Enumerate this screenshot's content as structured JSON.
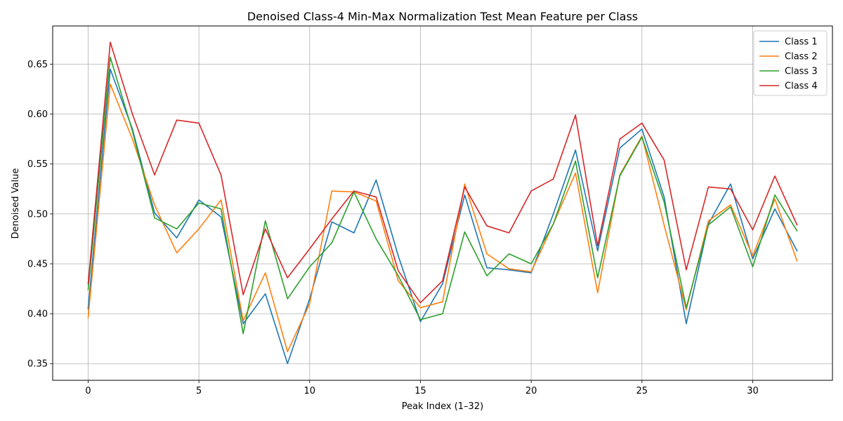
{
  "chart_data": {
    "type": "line",
    "title": "Denoised Class-4 Min-Max Normalization Test Mean Feature per Class",
    "xlabel": "Peak Index (1–32)",
    "ylabel": "Denoised Value",
    "xlim": [
      -1.6,
      33.6
    ],
    "ylim": [
      0.3333,
      0.6883
    ],
    "xticks": [
      0,
      5,
      10,
      15,
      20,
      25,
      30
    ],
    "yticks": [
      0.35,
      0.4,
      0.45,
      0.5,
      0.55,
      0.6,
      0.65
    ],
    "ytick_labels": [
      "0.35",
      "0.40",
      "0.45",
      "0.50",
      "0.55",
      "0.60",
      "0.65"
    ],
    "grid": true,
    "legend_position": "top-right",
    "x": [
      0,
      1,
      2,
      3,
      4,
      5,
      6,
      7,
      8,
      9,
      10,
      11,
      12,
      13,
      14,
      15,
      16,
      17,
      18,
      19,
      20,
      21,
      22,
      23,
      24,
      25,
      26,
      27,
      28,
      29,
      30,
      31,
      32
    ],
    "series": [
      {
        "name": "Class 1",
        "color": "#1f77b4",
        "values": [
          0.405,
          0.645,
          0.585,
          0.501,
          0.476,
          0.514,
          0.497,
          0.39,
          0.42,
          0.35,
          0.415,
          0.492,
          0.481,
          0.534,
          0.458,
          0.392,
          0.43,
          0.519,
          0.446,
          0.444,
          0.441,
          0.5,
          0.564,
          0.463,
          0.566,
          0.585,
          0.517,
          0.39,
          0.49,
          0.53,
          0.455,
          0.505,
          0.463
        ]
      },
      {
        "name": "Class 2",
        "color": "#ff7f0e",
        "values": [
          0.396,
          0.63,
          0.575,
          0.509,
          0.461,
          0.485,
          0.514,
          0.393,
          0.441,
          0.362,
          0.41,
          0.523,
          0.522,
          0.513,
          0.433,
          0.406,
          0.412,
          0.53,
          0.46,
          0.445,
          0.442,
          0.49,
          0.541,
          0.421,
          0.539,
          0.578,
          0.489,
          0.404,
          0.493,
          0.509,
          0.458,
          0.515,
          0.453
        ]
      },
      {
        "name": "Class 3",
        "color": "#2ca02c",
        "values": [
          0.424,
          0.657,
          0.583,
          0.496,
          0.485,
          0.511,
          0.505,
          0.38,
          0.493,
          0.415,
          0.447,
          0.471,
          0.522,
          0.475,
          0.438,
          0.394,
          0.4,
          0.482,
          0.438,
          0.46,
          0.45,
          0.49,
          0.553,
          0.436,
          0.538,
          0.577,
          0.512,
          0.406,
          0.489,
          0.507,
          0.447,
          0.519,
          0.483
        ]
      },
      {
        "name": "Class 4",
        "color": "#d62728",
        "values": [
          0.43,
          0.672,
          0.6,
          0.539,
          0.594,
          0.591,
          0.539,
          0.419,
          0.485,
          0.436,
          0.465,
          0.495,
          0.523,
          0.517,
          0.443,
          0.411,
          0.433,
          0.527,
          0.488,
          0.481,
          0.523,
          0.535,
          0.599,
          0.468,
          0.575,
          0.591,
          0.554,
          0.444,
          0.527,
          0.525,
          0.484,
          0.538,
          0.489
        ]
      }
    ]
  }
}
